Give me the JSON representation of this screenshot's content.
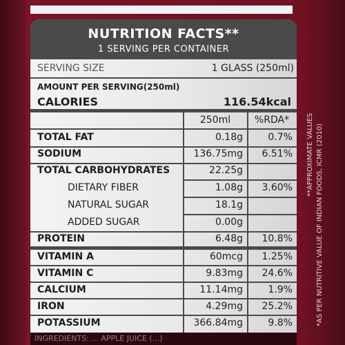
{
  "header": {
    "title": "NUTRITION FACTS**",
    "subtitle": "1 SERVING PER CONTAINER"
  },
  "serving": {
    "label": "SERVING SIZE",
    "value": "1 GLASS (250ml)"
  },
  "amount_label": "AMOUNT PER SERVING(250ml)",
  "calories": {
    "label": "CALORIES",
    "value": "116.54kcal"
  },
  "columns": {
    "amount": "250ml",
    "rda": "%RDA*"
  },
  "rows": [
    {
      "name": "TOTAL FAT",
      "amount": "0.18g",
      "rda": "0.7%"
    },
    {
      "name": "SODIUM",
      "amount": "136.75mg",
      "rda": "6.51%"
    },
    {
      "name": "TOTAL CARBOHYDRATES",
      "amount": "22.25g",
      "rda": ""
    },
    {
      "name": "DIETARY FIBER",
      "amount": "1.08g",
      "rda": "3.60%"
    },
    {
      "name": "NATURAL SUGAR",
      "amount": "18.1g",
      "rda": ""
    },
    {
      "name": "ADDED SUGAR",
      "amount": "0.00g",
      "rda": ""
    },
    {
      "name": "PROTEIN",
      "amount": "6.48g",
      "rda": "10.8%"
    },
    {
      "name": "VITAMIN A",
      "amount": "60mcg",
      "rda": "1.25%"
    },
    {
      "name": "VITAMIN C",
      "amount": "9.83mg",
      "rda": "24.6%"
    },
    {
      "name": "CALCIUM",
      "amount": "11.14mg",
      "rda": "1.9%"
    },
    {
      "name": "IRON",
      "amount": "4.29mg",
      "rda": "25.2%"
    },
    {
      "name": "POTASSIUM",
      "amount": "366.84mg",
      "rda": "9.8%"
    }
  ],
  "side_notes": {
    "approx": "**APPROXIMATE VALUES",
    "rda_note": "*AS PER NUTRITIVE VALUE OF INDIAN FOODS, ICMR (2010)"
  },
  "bottom_text": "INGREDIENTS: ... APPLE JUICE (...)",
  "colors": {
    "bottle": "#7a1428",
    "header_bg": "#4a4a4a",
    "panel_bg": "#efefef",
    "text": "#1e1e1e"
  }
}
